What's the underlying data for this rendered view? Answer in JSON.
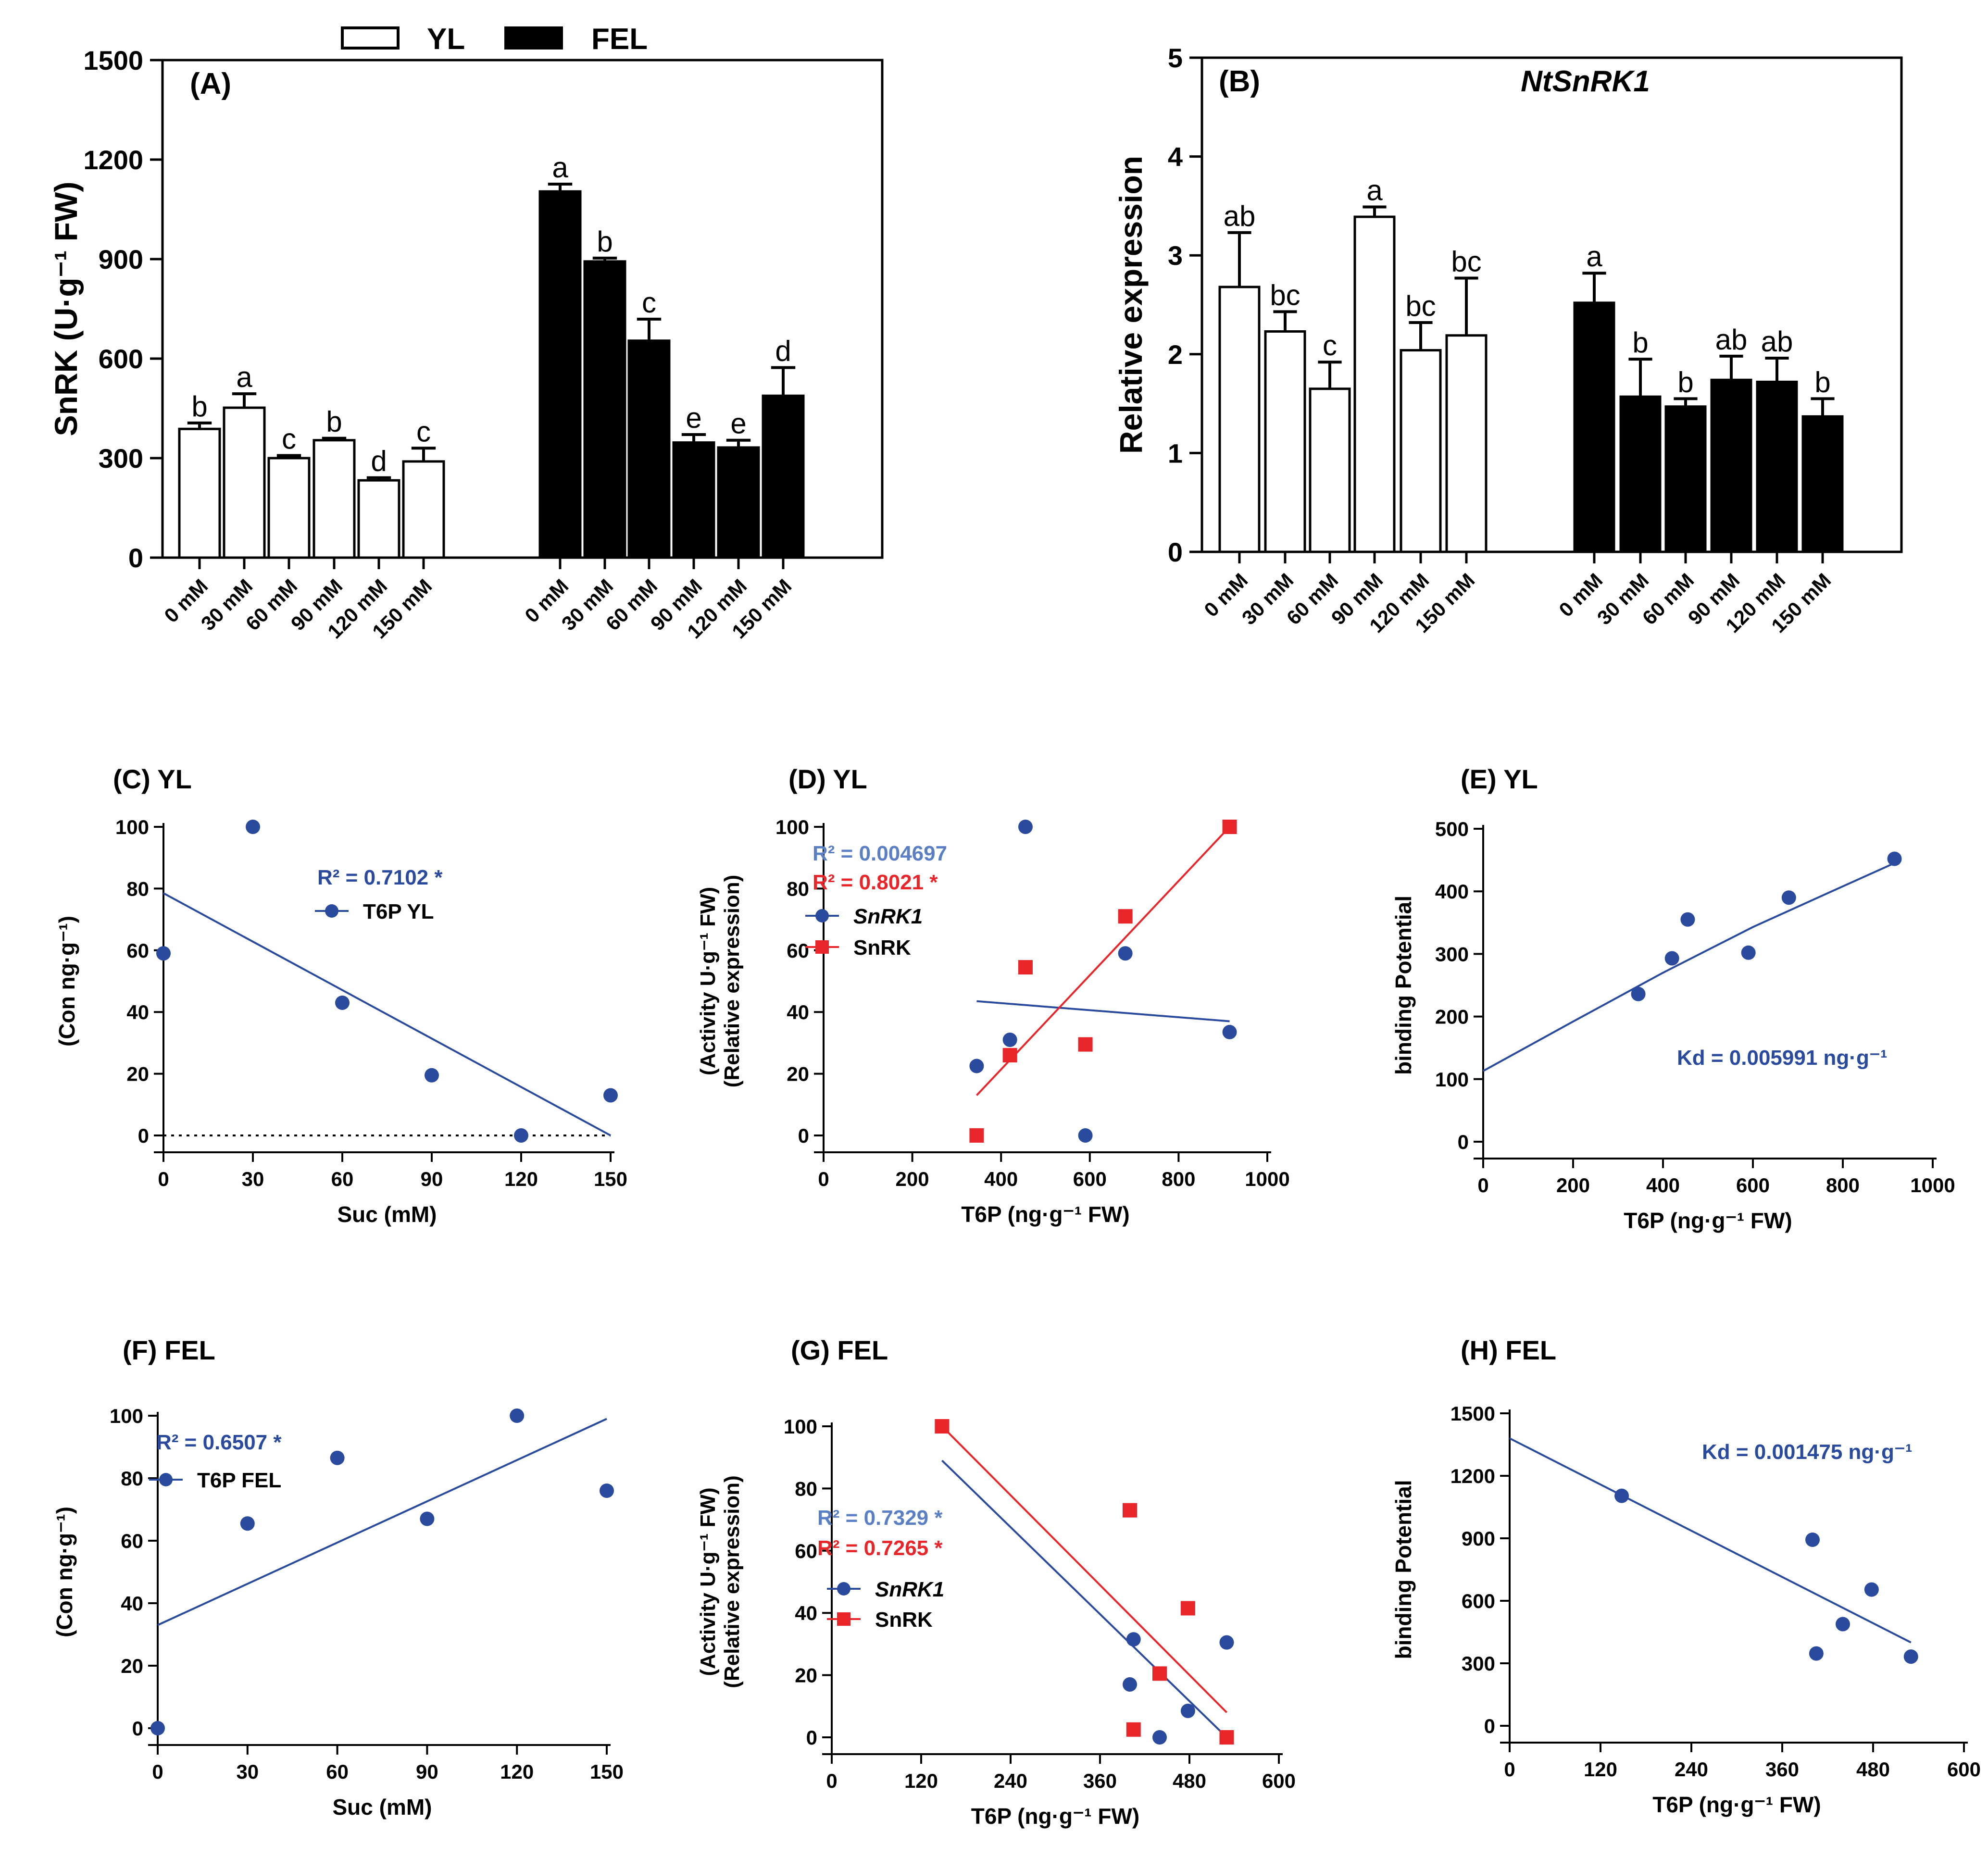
{
  "legend": {
    "yl": "YL",
    "fel": "FEL"
  },
  "colors": {
    "blue": "#2a4a9e",
    "red": "#e8262a",
    "black": "#000000",
    "lightblue": "#5a7fc4"
  },
  "chart_data": [
    {
      "id": "A",
      "type": "bar",
      "panel_label": "(A)",
      "title": "",
      "ylabel": "SnRK (U·g⁻¹ FW)",
      "xlabel": "",
      "ylim": [
        0,
        1500
      ],
      "yticks": [
        0,
        300,
        600,
        900,
        1200,
        1500
      ],
      "categories": [
        "0 mM",
        "30 mM",
        "60 mM",
        "90 mM",
        "120 mM",
        "150 mM"
      ],
      "series": [
        {
          "name": "YL",
          "fill": "white",
          "values": [
            388,
            452,
            300,
            354,
            233,
            290
          ],
          "errors": [
            18,
            42,
            8,
            6,
            8,
            40
          ],
          "letters": [
            "b",
            "a",
            "c",
            "b",
            "d",
            "c"
          ]
        },
        {
          "name": "FEL",
          "fill": "black",
          "values": [
            1104,
            893,
            654,
            347,
            332,
            488
          ],
          "errors": [
            22,
            10,
            65,
            24,
            22,
            85
          ],
          "letters": [
            "a",
            "b",
            "c",
            "e",
            "e",
            "d"
          ]
        }
      ]
    },
    {
      "id": "B",
      "type": "bar",
      "panel_label": "(B)",
      "title": "NtSnRK1",
      "ylabel": "Relative expression",
      "xlabel": "",
      "ylim": [
        0,
        5
      ],
      "yticks": [
        0,
        1,
        2,
        3,
        4,
        5
      ],
      "categories": [
        "0 mM",
        "30 mM",
        "60 mM",
        "90 mM",
        "120 mM",
        "150 mM"
      ],
      "series": [
        {
          "name": "YL",
          "fill": "white",
          "values": [
            2.68,
            2.23,
            1.65,
            3.39,
            2.04,
            2.19
          ],
          "errors": [
            0.55,
            0.2,
            0.27,
            0.1,
            0.28,
            0.58
          ],
          "letters": [
            "ab",
            "bc",
            "c",
            "a",
            "bc",
            "bc"
          ]
        },
        {
          "name": "FEL",
          "fill": "black",
          "values": [
            2.52,
            1.57,
            1.47,
            1.74,
            1.72,
            1.37
          ],
          "errors": [
            0.3,
            0.38,
            0.08,
            0.24,
            0.24,
            0.18
          ],
          "letters": [
            "a",
            "b",
            "b",
            "ab",
            "ab",
            "b"
          ]
        }
      ]
    },
    {
      "id": "C",
      "type": "scatter",
      "panel_label": "(C) YL",
      "ylabel": "(Con ng·g⁻¹)",
      "xlabel": "Suc (mM)",
      "xlim": [
        0,
        150
      ],
      "ylim": [
        0,
        100
      ],
      "xticks": [
        0,
        30,
        60,
        90,
        120,
        150
      ],
      "yticks": [
        0,
        20,
        40,
        60,
        80,
        100
      ],
      "zero_line": true,
      "series": [
        {
          "name": "T6P YL",
          "marker": "circle",
          "color": "#2a4a9e",
          "x": [
            0,
            30,
            60,
            90,
            120,
            150
          ],
          "y": [
            59,
            100,
            43,
            19.5,
            0,
            13
          ],
          "fit": [
            [
              0,
              78.5
            ],
            [
              150,
              0
            ]
          ]
        }
      ],
      "annotations": [
        {
          "text": "R² = 0.7102 *",
          "color": "#2a4a9e"
        }
      ]
    },
    {
      "id": "D",
      "type": "scatter",
      "panel_label": "(D) YL",
      "ylabel": "(Activity U·g⁻¹ FW) (Relative expression)",
      "xlabel": "T6P (ng·g⁻¹ FW)",
      "xlim": [
        0,
        1000
      ],
      "ylim": [
        0,
        100
      ],
      "xticks": [
        0,
        200,
        400,
        600,
        800,
        1000
      ],
      "yticks": [
        0,
        20,
        40,
        60,
        80,
        100
      ],
      "series": [
        {
          "name": "SnRK1",
          "italic": true,
          "marker": "circle",
          "color": "#2a4a9e",
          "x": [
            345,
            420,
            455,
            590,
            680,
            915
          ],
          "y": [
            22.5,
            31,
            100,
            0,
            59,
            33.5
          ],
          "fit": [
            [
              345,
              43.5
            ],
            [
              915,
              37
            ]
          ]
        },
        {
          "name": "SnRK",
          "italic": false,
          "marker": "square",
          "color": "#e8262a",
          "x": [
            345,
            420,
            455,
            590,
            680,
            915
          ],
          "y": [
            0,
            26,
            54.5,
            29.5,
            71,
            100
          ],
          "fit": [
            [
              345,
              13
            ],
            [
              915,
              100
            ]
          ]
        }
      ],
      "annotations": [
        {
          "text": "R² = 0.004697",
          "color": "#5a7fc4"
        },
        {
          "text": "R² = 0.8021 *",
          "color": "#e8262a"
        }
      ]
    },
    {
      "id": "E",
      "type": "scatter",
      "panel_label": "(E) YL",
      "ylabel": "binding Potential",
      "xlabel": "T6P (ng·g⁻¹ FW)",
      "xlim": [
        0,
        1000
      ],
      "ylim": [
        0,
        500
      ],
      "xticks": [
        0,
        200,
        400,
        600,
        800,
        1000
      ],
      "yticks": [
        0,
        100,
        200,
        300,
        400,
        500
      ],
      "series": [
        {
          "name": "",
          "marker": "circle",
          "color": "#2a4a9e",
          "x": [
            345,
            420,
            455,
            590,
            680,
            915
          ],
          "y": [
            236,
            293,
            355,
            302,
            390,
            452
          ],
          "fit": [
            [
              0,
              113
            ],
            [
              200,
              192
            ],
            [
              400,
              270
            ],
            [
              600,
              343
            ],
            [
              800,
              408
            ],
            [
              930,
              450
            ]
          ]
        }
      ],
      "annotations": [
        {
          "text": "Kd = 0.005991 ng·g⁻¹",
          "color": "#2a4a9e"
        }
      ]
    },
    {
      "id": "F",
      "type": "scatter",
      "panel_label": "(F) FEL",
      "ylabel": "(Con ng·g⁻¹)",
      "xlabel": "Suc (mM)",
      "xlim": [
        0,
        150
      ],
      "ylim": [
        0,
        100
      ],
      "xticks": [
        0,
        30,
        60,
        90,
        120,
        150
      ],
      "yticks": [
        0,
        20,
        40,
        60,
        80,
        100
      ],
      "series": [
        {
          "name": "T6P FEL",
          "marker": "circle",
          "color": "#2a4a9e",
          "x": [
            0,
            30,
            60,
            90,
            120,
            150
          ],
          "y": [
            0,
            65.5,
            86.5,
            67,
            100,
            76
          ],
          "fit": [
            [
              0,
              33
            ],
            [
              150,
              99
            ]
          ]
        }
      ],
      "annotations": [
        {
          "text": "R² = 0.6507 *",
          "color": "#2a4a9e"
        }
      ]
    },
    {
      "id": "G",
      "type": "scatter",
      "panel_label": "(G) FEL",
      "ylabel": "(Activity U·g⁻¹ FW) (Relative expression)",
      "xlabel": "T6P (ng·g⁻¹ FW)",
      "xlim": [
        0,
        600
      ],
      "ylim": [
        0,
        100
      ],
      "xticks": [
        0,
        120,
        240,
        360,
        480,
        600
      ],
      "yticks": [
        0,
        20,
        40,
        60,
        80,
        100
      ],
      "series": [
        {
          "name": "SnRK1",
          "italic": true,
          "marker": "circle",
          "color": "#2a4a9e",
          "x": [
            148,
            400,
            405,
            440,
            478,
            530
          ],
          "y": [
            100,
            17,
            31.5,
            0,
            8.5,
            30.5
          ],
          "fit": [
            [
              148,
              89
            ],
            [
              530,
              0
            ]
          ]
        },
        {
          "name": "SnRK",
          "italic": false,
          "marker": "square",
          "color": "#e8262a",
          "x": [
            148,
            400,
            405,
            440,
            478,
            530
          ],
          "y": [
            100,
            73,
            2.5,
            20.5,
            41.5,
            0
          ],
          "fit": [
            [
              148,
              100
            ],
            [
              530,
              8
            ]
          ]
        }
      ],
      "annotations": [
        {
          "text": "R² = 0.7329 *",
          "color": "#5a7fc4"
        },
        {
          "text": "R² = 0.7265 *",
          "color": "#e8262a"
        }
      ]
    },
    {
      "id": "H",
      "type": "scatter",
      "panel_label": "(H)  FEL",
      "ylabel": "binding Potential",
      "xlabel": "T6P (ng·g⁻¹ FW)",
      "xlim": [
        0,
        600
      ],
      "ylim": [
        0,
        1500
      ],
      "xticks": [
        0,
        120,
        240,
        360,
        480,
        600
      ],
      "yticks": [
        0,
        300,
        600,
        900,
        1200,
        1500
      ],
      "series": [
        {
          "name": "",
          "marker": "circle",
          "color": "#2a4a9e",
          "x": [
            148,
            400,
            405,
            440,
            478,
            530
          ],
          "y": [
            1104,
            893,
            347,
            488,
            654,
            332
          ],
          "fit": [
            [
              0,
              1380
            ],
            [
              530,
              400
            ]
          ]
        }
      ],
      "annotations": [
        {
          "text": "Kd = 0.001475 ng·g⁻¹",
          "color": "#2a4a9e"
        }
      ]
    }
  ]
}
